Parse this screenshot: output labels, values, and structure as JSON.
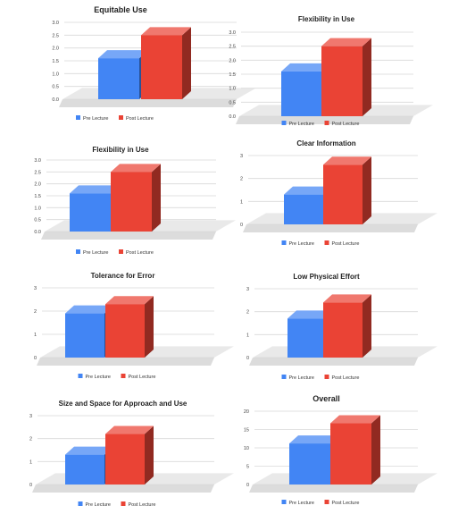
{
  "legend_labels": [
    "Pre Lecture",
    "Post Lecture"
  ],
  "colors": {
    "pre": "#4285F4",
    "post": "#EA4335"
  },
  "chart_data": [
    {
      "type": "bar",
      "title": "Equitable Use",
      "series": [
        {
          "name": "Pre Lecture",
          "values": [
            1.6
          ]
        },
        {
          "name": "Post Lecture",
          "values": [
            2.5
          ]
        }
      ],
      "ylim": [
        0,
        3
      ],
      "yticks": [
        "0.0",
        "0.5",
        "1.0",
        "1.5",
        "2.0",
        "2.5",
        "3.0"
      ],
      "grid": true,
      "legend": "bottom"
    },
    {
      "type": "bar",
      "title": "Flexibility in Use",
      "series": [
        {
          "name": "Pre Lecture",
          "values": [
            1.6
          ]
        },
        {
          "name": "Post Lecture",
          "values": [
            2.5
          ]
        }
      ],
      "ylim": [
        0,
        3
      ],
      "yticks": [
        "0.0",
        "0.5",
        "1.0",
        "1.5",
        "2.0",
        "2.5",
        "3.0"
      ],
      "grid": true,
      "legend": "bottom"
    },
    {
      "type": "bar",
      "title": "Flexibility in Use",
      "series": [
        {
          "name": "Pre Lecture",
          "values": [
            1.6
          ]
        },
        {
          "name": "Post Lecture",
          "values": [
            2.5
          ]
        }
      ],
      "ylim": [
        0,
        3
      ],
      "yticks": [
        "0.0",
        "0.5",
        "1.0",
        "1.5",
        "2.0",
        "2.5",
        "3.0"
      ],
      "grid": true,
      "legend": "bottom"
    },
    {
      "type": "bar",
      "title": "Clear Information",
      "series": [
        {
          "name": "Pre Lecture",
          "values": [
            1.3
          ]
        },
        {
          "name": "Post Lecture",
          "values": [
            2.6
          ]
        }
      ],
      "ylim": [
        0,
        3
      ],
      "yticks": [
        "0",
        "1",
        "2",
        "3"
      ],
      "grid": true,
      "legend": "bottom"
    },
    {
      "type": "bar",
      "title": "Tolerance for Error",
      "series": [
        {
          "name": "Pre Lecture",
          "values": [
            1.9
          ]
        },
        {
          "name": "Post Lecture",
          "values": [
            2.3
          ]
        }
      ],
      "ylim": [
        0,
        3
      ],
      "yticks": [
        "0",
        "1",
        "2",
        "3"
      ],
      "grid": true,
      "legend": "bottom"
    },
    {
      "type": "bar",
      "title": "Low Physical Effort",
      "series": [
        {
          "name": "Pre Lecture",
          "values": [
            1.7
          ]
        },
        {
          "name": "Post Lecture",
          "values": [
            2.4
          ]
        }
      ],
      "ylim": [
        0,
        3
      ],
      "yticks": [
        "0",
        "1",
        "2",
        "3"
      ],
      "grid": true,
      "legend": "bottom"
    },
    {
      "type": "bar",
      "title": "Size and Space for Approach and Use",
      "series": [
        {
          "name": "Pre Lecture",
          "values": [
            1.3
          ]
        },
        {
          "name": "Post Lecture",
          "values": [
            2.2
          ]
        }
      ],
      "ylim": [
        0,
        3
      ],
      "yticks": [
        "0",
        "1",
        "2",
        "3"
      ],
      "grid": true,
      "legend": "bottom"
    },
    {
      "type": "bar",
      "title": "Overall",
      "series": [
        {
          "name": "Pre Lecture",
          "values": [
            11.2
          ]
        },
        {
          "name": "Post Lecture",
          "values": [
            16.7
          ]
        }
      ],
      "ylim": [
        0,
        20
      ],
      "yticks": [
        "0",
        "5",
        "10",
        "15",
        "20"
      ],
      "grid": true,
      "legend": "bottom"
    }
  ]
}
